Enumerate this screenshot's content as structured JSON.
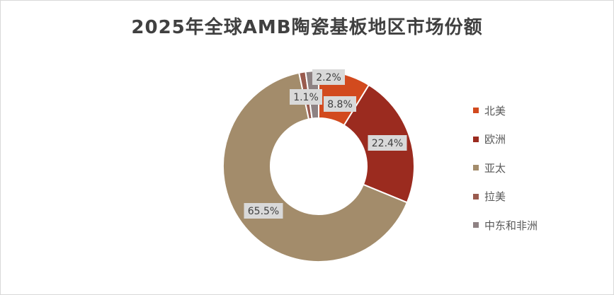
{
  "chart_data": {
    "type": "pie",
    "title": "2025年全球AMB陶瓷基板地区市场份额",
    "categories": [
      "北美",
      "欧洲",
      "亚太",
      "拉美",
      "中东和非洲"
    ],
    "values": [
      8.8,
      22.4,
      65.5,
      1.1,
      2.2
    ],
    "data_labels": [
      "8.8%",
      "22.4%",
      "65.5%",
      "1.1%",
      "2.2%"
    ],
    "colors": [
      "#D24A1E",
      "#9B2B1F",
      "#A38C6B",
      "#9A5B4E",
      "#8E8283"
    ],
    "donut": true,
    "legend": "right"
  }
}
